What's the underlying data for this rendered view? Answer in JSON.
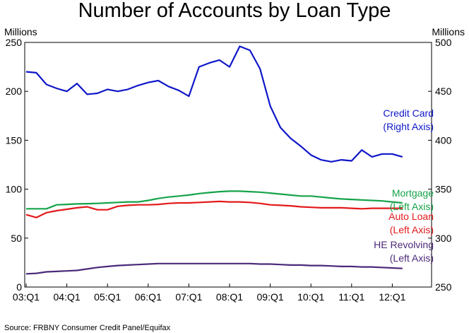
{
  "chart_data": {
    "type": "line",
    "title": "Number of Accounts by Loan Type",
    "left_axis_unit": "Millions",
    "right_axis_unit": "Millions",
    "source": "Source: FRBNY Consumer Credit Panel/Equifax",
    "x_tick_labels": [
      "03:Q1",
      "04:Q1",
      "05:Q1",
      "06:Q1",
      "07:Q1",
      "08:Q1",
      "09:Q1",
      "10:Q1",
      "11:Q1",
      "12:Q1"
    ],
    "left_axis": {
      "range": [
        0,
        250
      ],
      "ticks": [
        0,
        50,
        100,
        150,
        200,
        250
      ]
    },
    "right_axis": {
      "range": [
        250,
        500
      ],
      "ticks": [
        250,
        300,
        350,
        400,
        450,
        500
      ]
    },
    "grid": false,
    "x": [
      "03:Q1",
      "03:Q2",
      "03:Q3",
      "03:Q4",
      "04:Q1",
      "04:Q2",
      "04:Q3",
      "04:Q4",
      "05:Q1",
      "05:Q2",
      "05:Q3",
      "05:Q4",
      "06:Q1",
      "06:Q2",
      "06:Q3",
      "06:Q4",
      "07:Q1",
      "07:Q2",
      "07:Q3",
      "07:Q4",
      "08:Q1",
      "08:Q2",
      "08:Q3",
      "08:Q4",
      "09:Q1",
      "09:Q2",
      "09:Q3",
      "09:Q4",
      "10:Q1",
      "10:Q2",
      "10:Q3",
      "10:Q4",
      "11:Q1",
      "11:Q2",
      "11:Q3",
      "11:Q4",
      "12:Q1",
      "12:Q2"
    ],
    "series": [
      {
        "name": "Credit Card",
        "axis_label": "(Right Axis)",
        "axis": "right",
        "color": "#0f17c8",
        "values": [
          470,
          469,
          457,
          453,
          450,
          458,
          447,
          448,
          452,
          450,
          452,
          456,
          459,
          461,
          455,
          451,
          445,
          475,
          479,
          482,
          475,
          496,
          492,
          473,
          435,
          413,
          402,
          394,
          385,
          380,
          378,
          380,
          379,
          390,
          383,
          386,
          386,
          383
        ]
      },
      {
        "name": "Mortgage",
        "axis_label": "(Left Axis)",
        "axis": "left",
        "color": "#16a34a",
        "values": [
          80,
          80,
          80,
          84,
          84.5,
          85,
          85.2,
          85.5,
          86,
          86.5,
          87,
          87,
          88.5,
          90.5,
          92,
          93,
          94,
          95.5,
          96.5,
          97.5,
          98,
          98,
          97.5,
          97,
          96,
          95,
          94,
          93,
          93,
          92,
          91,
          90,
          89.5,
          89,
          88.5,
          88,
          87,
          86
        ]
      },
      {
        "name": "Auto Loan",
        "axis_label": "(Left Axis)",
        "axis": "left",
        "color": "#e31a1c",
        "values": [
          74,
          71,
          76,
          78,
          79.5,
          81,
          82,
          79,
          79,
          82.5,
          83.5,
          84,
          84,
          84.5,
          85.5,
          86,
          86,
          86.5,
          87,
          87.5,
          87,
          87,
          86.5,
          85.5,
          84,
          83.5,
          83,
          82,
          81.5,
          81,
          81,
          81,
          80.5,
          80,
          80.5,
          80.5,
          80.5,
          80.5
        ]
      },
      {
        "name": "HE Revolving",
        "axis_label": "(Left Axis)",
        "axis": "left",
        "color": "#4b2a7a",
        "values": [
          13.5,
          14,
          15.5,
          16,
          16.5,
          17,
          18.5,
          20,
          21,
          22,
          22.5,
          23,
          23.5,
          24,
          24,
          24,
          24,
          24,
          24,
          24,
          24,
          24,
          24,
          23.5,
          23.5,
          23,
          22.5,
          22.5,
          22,
          22,
          21.5,
          21,
          21,
          20.5,
          20.5,
          20,
          19.5,
          19
        ]
      }
    ]
  }
}
